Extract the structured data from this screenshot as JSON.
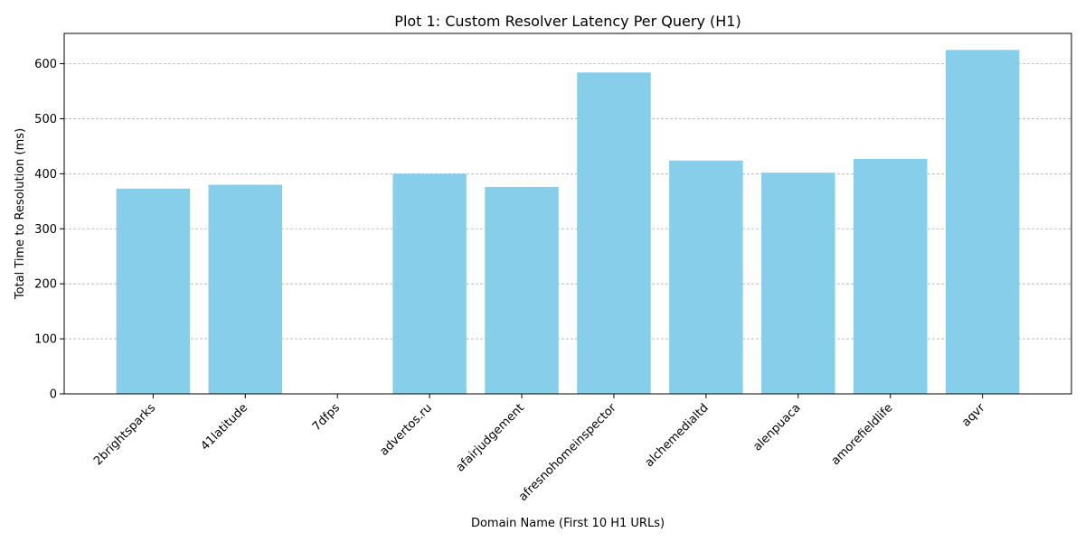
{
  "chart_data": {
    "type": "bar",
    "title": "Plot 1: Custom Resolver Latency Per Query (H1)",
    "xlabel": "Domain Name (First 10 H1 URLs)",
    "ylabel": "Total Time to Resolution (ms)",
    "categories": [
      "2brightsparks",
      "41latitude",
      "7dfps",
      "advertos.ru",
      "afairjudgement",
      "afresnohomeinspector",
      "alchemedialtd",
      "alenpuaca",
      "amorefieldlife",
      "aqvr"
    ],
    "values": [
      373,
      380,
      0,
      400,
      376,
      584,
      424,
      402,
      427,
      625
    ],
    "ylim": [
      0,
      655
    ],
    "yticks": [
      0,
      100,
      200,
      300,
      400,
      500,
      600
    ],
    "bar_color": "#87ceeb",
    "grid": {
      "axis": "y",
      "style": "dashed",
      "color": "#b0b0b0"
    },
    "legend": "none"
  }
}
